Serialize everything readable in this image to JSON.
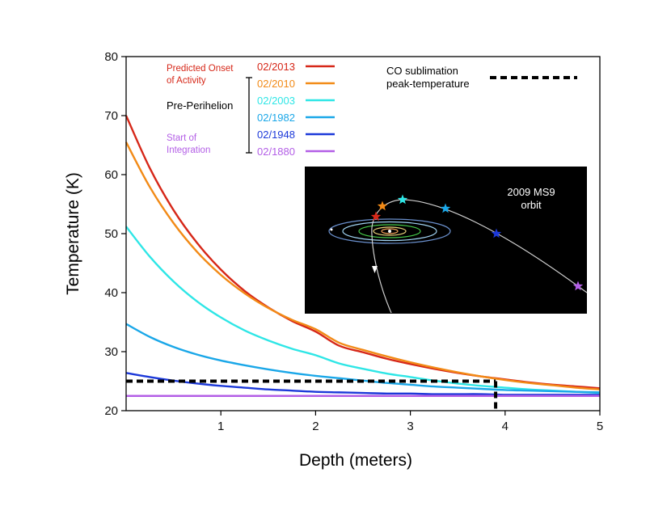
{
  "chart_data": {
    "type": "line",
    "title": "",
    "xlabel": "Depth (meters)",
    "ylabel": "Temperature (K)",
    "xlim": [
      0,
      5
    ],
    "ylim": [
      20,
      80
    ],
    "xticks": [
      1,
      2,
      3,
      4,
      5
    ],
    "yticks": [
      20,
      30,
      40,
      50,
      60,
      70,
      80
    ],
    "grid": false,
    "legend_position": "top",
    "series": [
      {
        "name": "02/2013",
        "color": "#d62718",
        "x": [
          0,
          0.25,
          0.5,
          0.75,
          1,
          1.25,
          1.5,
          1.75,
          2,
          2.25,
          2.5,
          2.75,
          3,
          3.25,
          3.5,
          3.75,
          4,
          4.25,
          4.5,
          4.75,
          5
        ],
        "y": [
          70,
          61.1,
          54.0,
          48.4,
          43.9,
          40.3,
          37.5,
          35.2,
          33.4,
          31.0,
          29.9,
          28.8,
          27.9,
          27.1,
          26.4,
          25.8,
          25.3,
          24.8,
          24.4,
          24.1,
          23.8
        ]
      },
      {
        "name": "02/2010",
        "color": "#f28a16",
        "x": [
          0,
          0.25,
          0.5,
          0.75,
          1,
          1.25,
          1.5,
          1.75,
          2,
          2.25,
          2.5,
          2.75,
          3,
          3.25,
          3.5,
          3.75,
          4,
          4.25,
          4.5,
          4.75,
          5
        ],
        "y": [
          65.5,
          57.9,
          51.8,
          46.9,
          43.0,
          39.9,
          37.4,
          35.4,
          33.8,
          31.5,
          30.3,
          29.2,
          28.2,
          27.3,
          26.5,
          25.8,
          25.2,
          24.7,
          24.3,
          23.9,
          23.6
        ]
      },
      {
        "name": "02/2003",
        "color": "#2ee6e6",
        "x": [
          0,
          0.25,
          0.5,
          0.75,
          1,
          1.25,
          1.5,
          1.75,
          2,
          2.25,
          2.5,
          2.75,
          3,
          3.25,
          3.5,
          3.75,
          4,
          4.25,
          4.5,
          4.75,
          5
        ],
        "y": [
          51.2,
          46.1,
          41.9,
          38.5,
          35.8,
          33.6,
          31.9,
          30.5,
          29.4,
          28.0,
          27.1,
          26.3,
          25.7,
          25.1,
          24.6,
          24.2,
          23.9,
          23.6,
          23.4,
          23.2,
          23.0
        ]
      },
      {
        "name": "02/1982",
        "color": "#1aa7e8",
        "x": [
          0,
          0.25,
          0.5,
          0.75,
          1,
          1.25,
          1.5,
          1.75,
          2,
          2.25,
          2.5,
          2.75,
          3,
          3.25,
          3.5,
          3.75,
          4,
          4.25,
          4.5,
          4.75,
          5
        ],
        "y": [
          34.7,
          32.5,
          30.8,
          29.5,
          28.5,
          27.7,
          27.0,
          26.4,
          25.9,
          25.5,
          25.1,
          24.7,
          24.4,
          24.1,
          23.9,
          23.7,
          23.5,
          23.4,
          23.3,
          23.2,
          23.1
        ]
      },
      {
        "name": "02/1948",
        "color": "#1c39d9",
        "x": [
          0,
          0.25,
          0.5,
          0.75,
          1,
          1.25,
          1.5,
          1.75,
          2,
          2.25,
          2.5,
          2.75,
          3,
          3.25,
          3.5,
          3.75,
          4,
          4.25,
          4.5,
          4.75,
          5
        ],
        "y": [
          26.4,
          25.7,
          25.1,
          24.6,
          24.2,
          23.9,
          23.6,
          23.4,
          23.2,
          23.1,
          23.0,
          22.9,
          22.9,
          22.8,
          22.8,
          22.8,
          22.7,
          22.7,
          22.7,
          22.7,
          22.7
        ]
      },
      {
        "name": "02/1880",
        "color": "#b35ee6",
        "x": [
          0,
          5
        ],
        "y": [
          22.5,
          22.5
        ]
      }
    ],
    "reference_lines": [
      {
        "name": "CO sublimation peak-temperature",
        "y": 25.0,
        "x_end": 3.9,
        "style": "dashed",
        "color": "#000000"
      }
    ]
  },
  "legend": {
    "group_labels": [
      {
        "text_lines": [
          "Predicted Onset",
          "of Activity"
        ],
        "color": "#d62718"
      },
      {
        "text_lines": [
          "Pre-Perihelion"
        ],
        "color": "#000000"
      },
      {
        "text_lines": [
          "Start of",
          "Integration"
        ],
        "color": "#b35ee6"
      }
    ],
    "co_label_lines": [
      "CO sublimation",
      "peak-temperature"
    ]
  },
  "inset": {
    "title_lines": [
      "2009 MS9",
      "orbit"
    ],
    "background": "#000000",
    "trajectory_color": "#cfcfcf",
    "orbit_colors": [
      "#6a8fcc",
      "#9fd1f0",
      "#45c94a",
      "#e8d27a",
      "#f0a05a",
      "#d0d0d0"
    ],
    "star_colors": [
      "#d62718",
      "#f28a16",
      "#2ee6e6",
      "#1aa7e8",
      "#1c39d9",
      "#b35ee6"
    ]
  }
}
